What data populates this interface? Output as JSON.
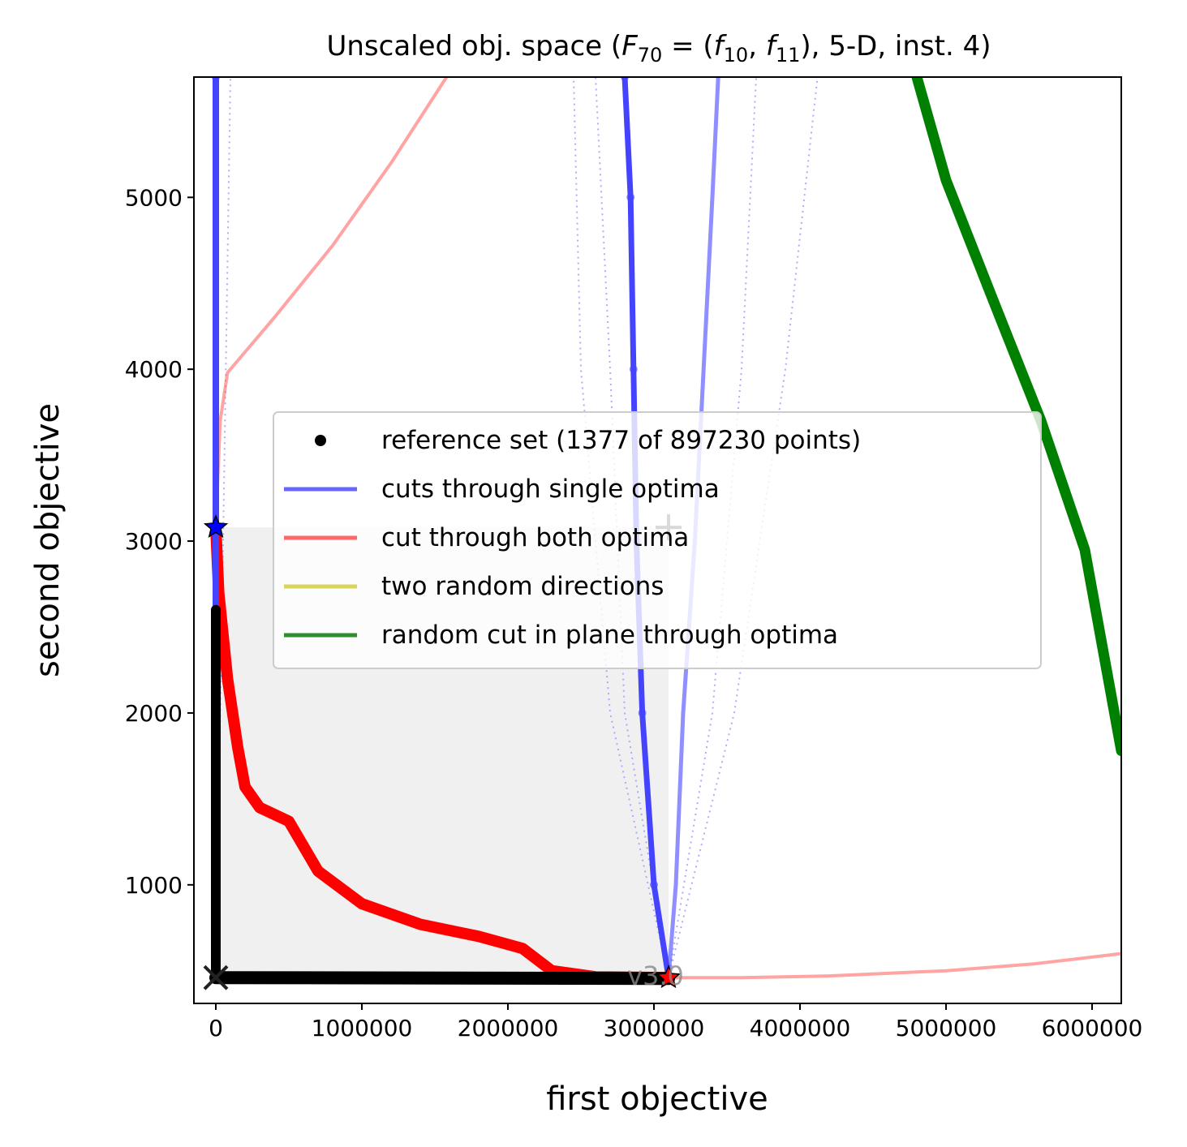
{
  "chart_data": {
    "type": "line",
    "title_parts": {
      "prefix": "Unscaled obj. space (",
      "F": "F",
      "F_sub": "70",
      "eq": " = (",
      "f": "f",
      "f1_sub": "10",
      "comma": ", ",
      "f2_sub": "11",
      "suffix": "), 5-D, inst. 4)"
    },
    "xlabel": "first objective",
    "ylabel": "second objective",
    "xlim": [
      -150000,
      6200000
    ],
    "ylim": [
      310,
      5700
    ],
    "xticks": [
      {
        "value": 0,
        "label": "0"
      },
      {
        "value": 1000000,
        "label": "1000000"
      },
      {
        "value": 2000000,
        "label": "2000000"
      },
      {
        "value": 3000000,
        "label": "3000000"
      },
      {
        "value": 4000000,
        "label": "4000000"
      },
      {
        "value": 5000000,
        "label": "5000000"
      },
      {
        "value": 6000000,
        "label": "6000000"
      }
    ],
    "yticks": [
      {
        "value": 1000,
        "label": "1000"
      },
      {
        "value": 2000,
        "label": "2000"
      },
      {
        "value": 3000,
        "label": "3000"
      },
      {
        "value": 4000,
        "label": "4000"
      },
      {
        "value": 5000,
        "label": "5000"
      }
    ],
    "dominated_region": {
      "x": [
        0,
        3100000
      ],
      "y": [
        460,
        3080
      ]
    },
    "legend": {
      "position": "center",
      "entries": [
        {
          "label": "reference set (1377 of 897230 points)",
          "color": "#000000",
          "marker": "dot"
        },
        {
          "label": "cuts through single optima",
          "color": "#6666ff",
          "marker": "line"
        },
        {
          "label": "cut through both optima",
          "color": "#ff6666",
          "marker": "line"
        },
        {
          "label": "two random directions",
          "color": "#d9d45a",
          "marker": "line"
        },
        {
          "label": "random cut in plane through optima",
          "color": "#2f8f2f",
          "marker": "line"
        }
      ]
    },
    "series": [
      {
        "name": "cut through both optima",
        "color": "#ff6666",
        "role": "upper",
        "points": [
          [
            0,
            3100
          ],
          [
            30000,
            3700
          ],
          [
            80000,
            3980
          ],
          [
            200000,
            4100
          ],
          [
            400000,
            4300
          ],
          [
            800000,
            4720
          ],
          [
            1200000,
            5200
          ],
          [
            1580000,
            5700
          ]
        ]
      },
      {
        "name": "cut through both optima",
        "color": "#ff6666",
        "role": "lower",
        "points": [
          [
            3100000,
            460
          ],
          [
            3600000,
            460
          ],
          [
            4200000,
            470
          ],
          [
            5000000,
            500
          ],
          [
            5600000,
            540
          ],
          [
            6200000,
            600
          ]
        ]
      },
      {
        "name": "cut through both optima",
        "color": "#ff0000",
        "role": "front",
        "points": [
          [
            0,
            3080
          ],
          [
            20000,
            2700
          ],
          [
            80000,
            2200
          ],
          [
            150000,
            1800
          ],
          [
            200000,
            1570
          ],
          [
            300000,
            1450
          ],
          [
            500000,
            1370
          ],
          [
            700000,
            1080
          ],
          [
            1000000,
            890
          ],
          [
            1400000,
            770
          ],
          [
            1800000,
            700
          ],
          [
            2100000,
            630
          ],
          [
            2300000,
            500
          ],
          [
            2600000,
            465
          ],
          [
            3100000,
            460
          ]
        ]
      },
      {
        "name": "cuts through single optima",
        "color": "#4444ff",
        "role": "optimum-1",
        "points": [
          [
            0,
            460
          ],
          [
            0,
            2000
          ],
          [
            0,
            3080
          ],
          [
            0,
            5700
          ]
        ]
      },
      {
        "name": "cuts through single optima",
        "color": "#4444ff",
        "role": "optimum-2",
        "points": [
          [
            3100000,
            460
          ],
          [
            3000000,
            1000
          ],
          [
            2920000,
            2000
          ],
          [
            2880000,
            3000
          ],
          [
            2860000,
            4000
          ],
          [
            2840000,
            5000
          ],
          [
            2800000,
            5700
          ]
        ]
      },
      {
        "name": "cuts through single optima",
        "color": "#4444ff",
        "role": "optimum-2-solid",
        "points": [
          [
            3100000,
            460
          ],
          [
            3150000,
            1000
          ],
          [
            3200000,
            2000
          ],
          [
            3280000,
            3000
          ],
          [
            3340000,
            4000
          ],
          [
            3400000,
            5000
          ],
          [
            3440000,
            5700
          ]
        ]
      },
      {
        "name": "random cut in plane through optima",
        "color": "#008000",
        "points": [
          [
            4800000,
            5700
          ],
          [
            5000000,
            5100
          ],
          [
            5300000,
            4450
          ],
          [
            5650000,
            3700
          ],
          [
            5950000,
            2950
          ],
          [
            6200000,
            1780
          ]
        ]
      },
      {
        "name": "reference set",
        "color": "#000000",
        "role": "horizontal",
        "points": [
          [
            0,
            460
          ],
          [
            3100000,
            455
          ]
        ]
      },
      {
        "name": "reference set",
        "color": "#000000",
        "role": "vertical",
        "points": [
          [
            0,
            460
          ],
          [
            0,
            2600
          ]
        ]
      }
    ],
    "dotted_cuts": [
      {
        "color": "#9999ff",
        "points": [
          [
            3100000,
            460
          ],
          [
            2700000,
            2000
          ],
          [
            2500000,
            4000
          ],
          [
            2450000,
            5700
          ]
        ]
      },
      {
        "color": "#9999ff",
        "points": [
          [
            3100000,
            460
          ],
          [
            2800000,
            2000
          ],
          [
            2700000,
            4000
          ],
          [
            2600000,
            5700
          ]
        ]
      },
      {
        "color": "#9999ff",
        "points": [
          [
            3100000,
            460
          ],
          [
            3400000,
            2000
          ],
          [
            3600000,
            4000
          ],
          [
            3700000,
            5700
          ]
        ]
      },
      {
        "color": "#9999ff",
        "points": [
          [
            3100000,
            460
          ],
          [
            3550000,
            2000
          ],
          [
            3900000,
            4000
          ],
          [
            4120000,
            5700
          ]
        ]
      },
      {
        "color": "#9999ff",
        "points": [
          [
            0,
            460
          ],
          [
            50000,
            3000
          ],
          [
            100000,
            5700
          ]
        ]
      }
    ],
    "markers": [
      {
        "name": "optimum-1-star",
        "x": 0,
        "y": 3080,
        "color": "#0000ff"
      },
      {
        "name": "optimum-2-star",
        "x": 3100000,
        "y": 460,
        "color": "#ff0000"
      },
      {
        "name": "ideal-point-x",
        "x": 0,
        "y": 460
      },
      {
        "name": "nadir-plus",
        "x": 3100000,
        "y": 3080
      }
    ],
    "annotation": "v3.0"
  }
}
